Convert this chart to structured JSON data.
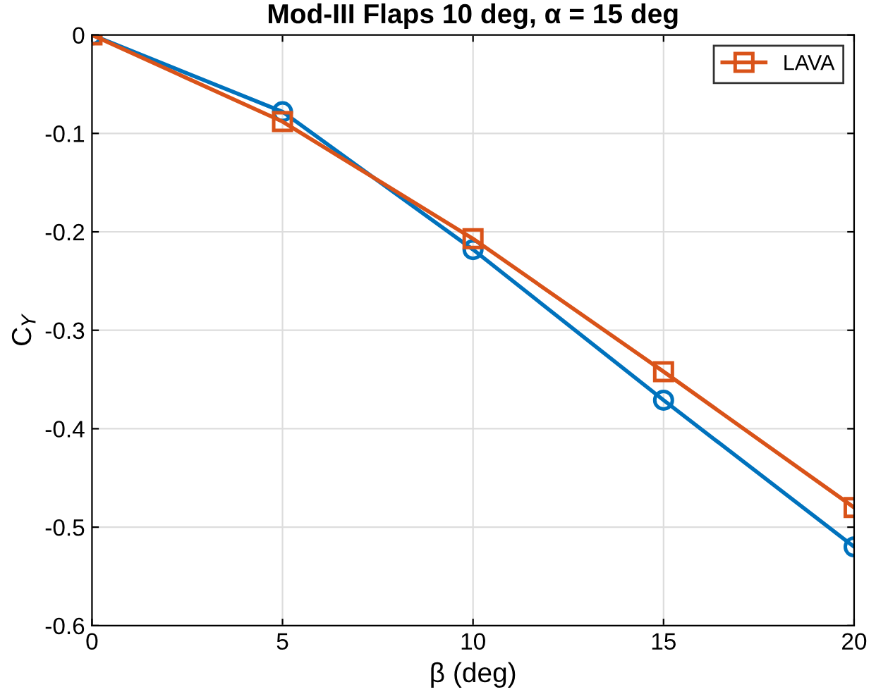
{
  "chart_data": {
    "type": "line",
    "title": "Mod-III Flaps 10 deg, α = 15 deg",
    "xlabel": "β (deg)",
    "ylabel": "C$_{Y}$",
    "x": [
      0,
      5,
      10,
      15,
      20
    ],
    "series": [
      {
        "color": "#0072bd",
        "marker": "circle",
        "values": [
          0,
          -0.078,
          -0.218,
          -0.371,
          -0.52
        ]
      },
      {
        "name": "LAVA",
        "color": "#d95319",
        "marker": "square",
        "values": [
          0,
          -0.088,
          -0.207,
          -0.342,
          -0.48
        ]
      }
    ],
    "xlim": [
      0,
      20
    ],
    "xticks": [
      0,
      5,
      10,
      15,
      20
    ],
    "ylim": [
      -0.6,
      0
    ],
    "yticks": [
      -0.6,
      -0.5,
      -0.4,
      -0.3,
      -0.2,
      -0.1,
      0
    ],
    "grid": true,
    "legend": "top right",
    "line_style": "solid"
  }
}
